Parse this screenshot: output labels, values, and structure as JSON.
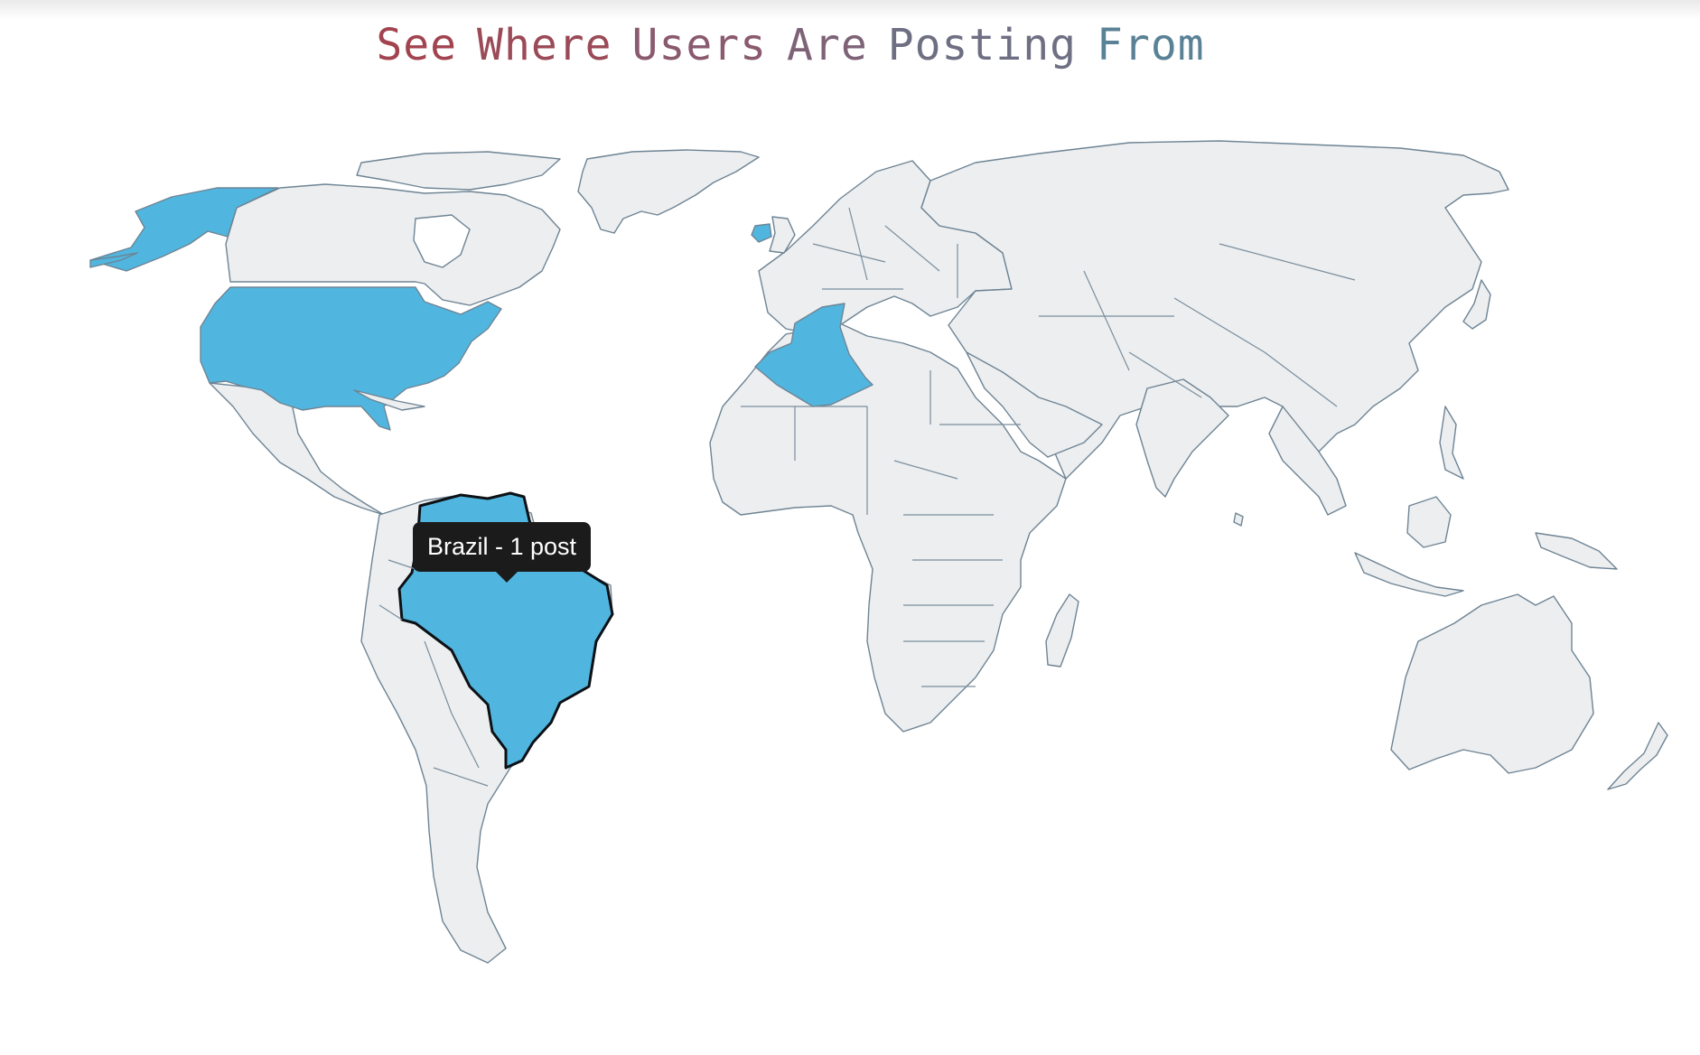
{
  "title": {
    "words": [
      "See",
      "Where",
      "Users",
      "Are",
      "Posting",
      "From"
    ],
    "colors": [
      "#a24450",
      "#9b4a57",
      "#8a5a6e",
      "#7e6378",
      "#6f6f84",
      "#5a8296"
    ]
  },
  "map": {
    "fill_color": "#eceef0",
    "stroke_color": "#6e8494",
    "highlight_color": "#51b6df",
    "highlighted_countries": [
      "United States",
      "Alaska (United States)",
      "Ireland",
      "Algeria",
      "Brazil"
    ],
    "hovered_country": "Brazil"
  },
  "tooltip": {
    "text": "Brazil - 1 post"
  }
}
